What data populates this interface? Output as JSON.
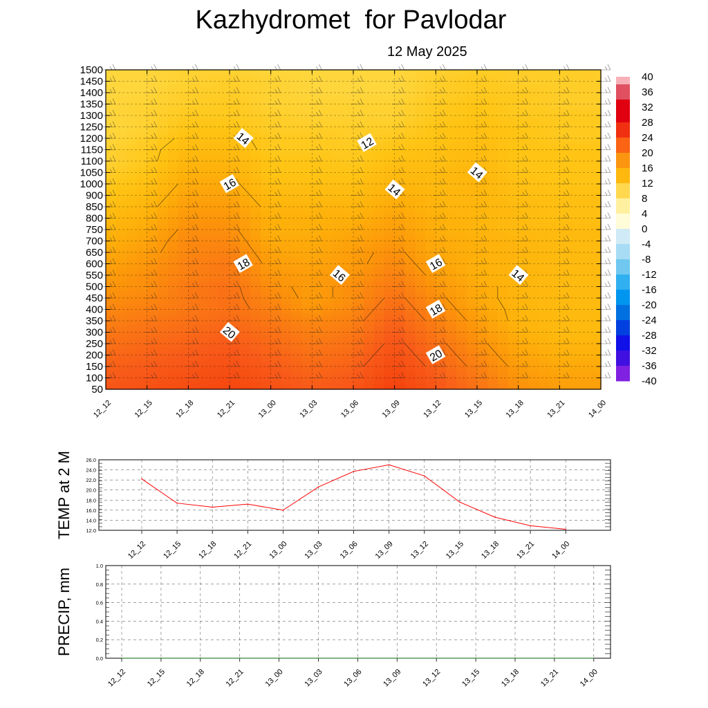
{
  "title": "Kazhydromet  for Pavlodar",
  "subtitle": "12 May 2025",
  "chart_data": [
    {
      "type": "heatmap",
      "name": "vertical temperature cross-section",
      "x_categories": [
        "12_12",
        "12_15",
        "12_18",
        "12_21",
        "13_00",
        "13_03",
        "13_06",
        "13_09",
        "13_12",
        "13_15",
        "13_18",
        "13_21",
        "14_00"
      ],
      "y_levels": [
        50,
        100,
        150,
        200,
        250,
        300,
        350,
        400,
        450,
        500,
        550,
        600,
        650,
        700,
        750,
        800,
        850,
        900,
        1000,
        1050,
        1100,
        1150,
        1200,
        1250,
        1300,
        1350,
        1400,
        1450,
        1500
      ],
      "ylim": [
        50,
        1500
      ],
      "colorbar": {
        "ticks": [
          40,
          36,
          32,
          28,
          24,
          20,
          16,
          12,
          8,
          4,
          0,
          -4,
          -8,
          -12,
          -16,
          -20,
          -24,
          -28,
          -32,
          -36,
          -40
        ],
        "range": [
          -40,
          40
        ]
      },
      "contour_levels": [
        12,
        14,
        16,
        18,
        20
      ],
      "contour_labels": [
        {
          "text": "14",
          "x": "12_22",
          "y": 1200
        },
        {
          "text": "12",
          "x": "13_07",
          "y": 1180
        },
        {
          "text": "14",
          "x": "13_15",
          "y": 1050
        },
        {
          "text": "16",
          "x": "12_21",
          "y": 1000
        },
        {
          "text": "14",
          "x": "13_09",
          "y": 950
        },
        {
          "text": "18",
          "x": "12_22",
          "y": 600
        },
        {
          "text": "16",
          "x": "13_05",
          "y": 550
        },
        {
          "text": "16",
          "x": "13_12",
          "y": 600
        },
        {
          "text": "14",
          "x": "13_18",
          "y": 550
        },
        {
          "text": "18",
          "x": "13_12",
          "y": 400
        },
        {
          "text": "20",
          "x": "12_21",
          "y": 300
        },
        {
          "text": "20",
          "x": "13_12",
          "y": 200
        }
      ],
      "temperature_field": [
        [
          20.5,
          21,
          21.5,
          22,
          21,
          20,
          20.5,
          22.5,
          20.5,
          18.5,
          16.5,
          15.5,
          15.5
        ],
        [
          20,
          20.5,
          21,
          21.5,
          20.5,
          19.5,
          20,
          22,
          20,
          18,
          16,
          15,
          15
        ],
        [
          19.5,
          20,
          20.5,
          21,
          20,
          19,
          19.5,
          21.5,
          19.5,
          17.5,
          15.5,
          14.5,
          14.5
        ],
        [
          19,
          19.5,
          20,
          20.5,
          19.5,
          18.5,
          19,
          21,
          19,
          17,
          15,
          14,
          14
        ],
        [
          18.5,
          19,
          19.5,
          20,
          19,
          18,
          18.5,
          20.5,
          18.5,
          16.5,
          14.5,
          13.5,
          13.5
        ],
        [
          18,
          18.5,
          19,
          19.5,
          18.5,
          17.5,
          18,
          20,
          18,
          16,
          14,
          13,
          13
        ],
        [
          17.5,
          18,
          18.5,
          19,
          18,
          17,
          17.5,
          19.5,
          17.5,
          15.5,
          13.5,
          13,
          13
        ],
        [
          17,
          17.5,
          18,
          18.5,
          17.5,
          16,
          17,
          19,
          17,
          15,
          13.5,
          13,
          13
        ],
        [
          16.5,
          17,
          18,
          18.5,
          17,
          15.5,
          16.5,
          18.5,
          16.5,
          14.5,
          13.5,
          13,
          13
        ],
        [
          16,
          16.5,
          18,
          18.5,
          16.5,
          15.5,
          16.5,
          18,
          16,
          14.5,
          13.5,
          13,
          13
        ],
        [
          15.5,
          16.5,
          17.5,
          18,
          16,
          15.5,
          16,
          17.5,
          15.5,
          14,
          13.5,
          13,
          13
        ],
        [
          15,
          16,
          17.5,
          18,
          15.5,
          15,
          15.5,
          17,
          15,
          14,
          13.5,
          13,
          13
        ],
        [
          14.5,
          15.5,
          17,
          17.5,
          15,
          14.5,
          15.5,
          16.5,
          14.5,
          14,
          13.5,
          13,
          13
        ],
        [
          14,
          15,
          17,
          17,
          14.5,
          14.5,
          15,
          16,
          14.5,
          14,
          13.5,
          13,
          13
        ],
        [
          13.5,
          14.5,
          16.5,
          16.5,
          14,
          14,
          14.5,
          15.5,
          14,
          13.5,
          13,
          13,
          13
        ],
        [
          13,
          14,
          16,
          16,
          14,
          14,
          14,
          15,
          14,
          13.5,
          13,
          12.5,
          12.5
        ],
        [
          12.5,
          13.5,
          15.5,
          15.5,
          13.5,
          13.5,
          13.5,
          14.5,
          13.5,
          13.5,
          13,
          12.5,
          12.5
        ],
        [
          12,
          13,
          15,
          15,
          13,
          13,
          13,
          14,
          13.5,
          13.5,
          12.5,
          12.5,
          12.5
        ],
        [
          11.5,
          12.5,
          14.5,
          14.5,
          12.5,
          12.5,
          12.5,
          13.5,
          13,
          13.5,
          12.5,
          12,
          12
        ],
        [
          11,
          12,
          14,
          14,
          12,
          12,
          12,
          13,
          13,
          13.5,
          12,
          12,
          12
        ],
        [
          10.5,
          11.5,
          13.5,
          13.5,
          12,
          12,
          11.5,
          12.5,
          12.5,
          13,
          12,
          12,
          12
        ],
        [
          10.5,
          11.5,
          13,
          13,
          11.5,
          11.5,
          11.5,
          12,
          12.5,
          13,
          12,
          12,
          12
        ],
        [
          10,
          11,
          12.5,
          12.5,
          11.5,
          11.5,
          11,
          11.5,
          12,
          12.5,
          12,
          11.5,
          11.5
        ],
        [
          10,
          10.5,
          12,
          12,
          11,
          11,
          11,
          11,
          12,
          12.5,
          12,
          11.5,
          11.5
        ],
        [
          10,
          10.5,
          11.5,
          11.5,
          11,
          10.5,
          10.5,
          10.5,
          11.5,
          12,
          11.5,
          11.5,
          11.5
        ],
        [
          10,
          10.5,
          11,
          11.5,
          10.5,
          10.5,
          10.5,
          10.5,
          11.5,
          12,
          11.5,
          11,
          11
        ],
        [
          10,
          10,
          11,
          11,
          10.5,
          10,
          10,
          10,
          11,
          11.5,
          11.5,
          11,
          11
        ],
        [
          10,
          10,
          10.5,
          11,
          10.5,
          10,
          10,
          10,
          11,
          11.5,
          11,
          11,
          11
        ],
        [
          10,
          10,
          10.5,
          10.5,
          10,
          10,
          10,
          10,
          10.5,
          11,
          11,
          11,
          11
        ]
      ]
    },
    {
      "type": "line",
      "name": "temp2m",
      "ylabel": "TEMP at 2 M",
      "categories": [
        "12_12",
        "12_15",
        "12_18",
        "12_21",
        "13_00",
        "13_03",
        "13_06",
        "13_09",
        "13_12",
        "13_15",
        "13_18",
        "13_21",
        "14_00"
      ],
      "series": [
        {
          "values": [
            22.2,
            17.4,
            16.6,
            17.2,
            16.0,
            20.6,
            23.7,
            25.0,
            22.8,
            17.6,
            14.6,
            12.9,
            12.2
          ],
          "color": "#ff0000"
        }
      ],
      "ylim": [
        12.0,
        26.0
      ],
      "yticks": [
        "12.0",
        "14.0",
        "16.0",
        "18.0",
        "20.0",
        "22.0",
        "24.0",
        "26.0"
      ]
    },
    {
      "type": "line",
      "name": "precip",
      "ylabel": "PRECIP, mm",
      "categories": [
        "12_12",
        "12_15",
        "12_18",
        "12_21",
        "13_00",
        "13_03",
        "13_06",
        "13_09",
        "13_12",
        "13_15",
        "13_18",
        "13_21",
        "14_00"
      ],
      "series": [
        {
          "values": [
            0,
            0,
            0,
            0,
            0,
            0,
            0,
            0,
            0,
            0,
            0,
            0,
            0
          ],
          "color": "#006400"
        }
      ],
      "ylim": [
        0.0,
        1.0
      ],
      "yticks": [
        "0.0",
        "0.2",
        "0.4",
        "0.6",
        "0.8",
        "1.0"
      ]
    }
  ]
}
